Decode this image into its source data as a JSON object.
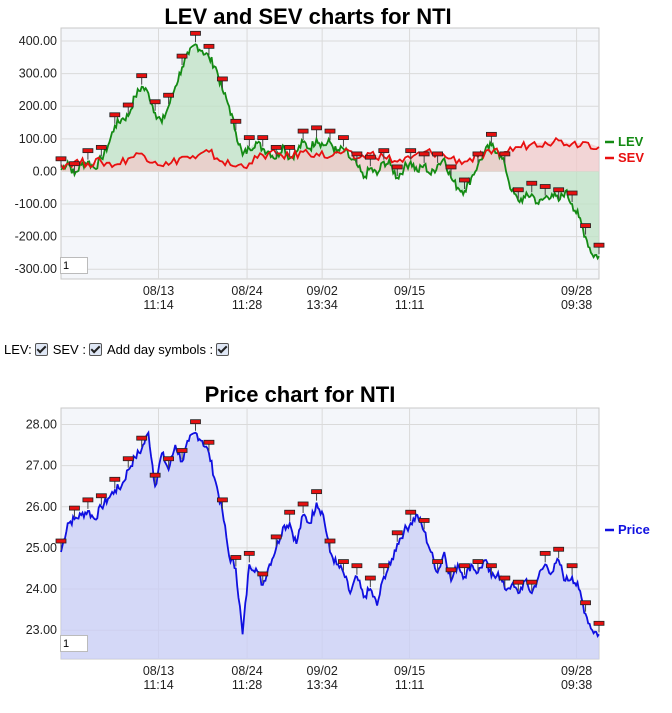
{
  "chart_data": [
    {
      "type": "line",
      "title": "LEV and SEV charts for NTI",
      "x_ticks": [
        {
          "date": "08/13",
          "time": "11:14"
        },
        {
          "date": "08/24",
          "time": "11:28"
        },
        {
          "date": "09/02",
          "time": "13:34"
        },
        {
          "date": "09/15",
          "time": "11:11"
        },
        {
          "date": "09/28",
          "time": "09:38"
        }
      ],
      "y_ticks": [
        "400.00",
        "300.00",
        "200.00",
        "100.00",
        "0.00",
        "-100.00",
        "-200.00",
        "-300.00"
      ],
      "ylim": [
        -330,
        440
      ],
      "grid": true,
      "legend_position": "right",
      "zoom_value": "1",
      "series": [
        {
          "name": "LEV",
          "color": "#138a13",
          "fill": "#bfe1c4",
          "points": [
            [
              0,
              5
            ],
            [
              0.03,
              30
            ],
            [
              0.06,
              -10
            ],
            [
              0.09,
              20
            ],
            [
              0.12,
              30
            ],
            [
              0.15,
              10
            ],
            [
              0.18,
              40
            ],
            [
              0.21,
              80
            ],
            [
              0.24,
              140
            ],
            [
              0.27,
              160
            ],
            [
              0.3,
              170
            ],
            [
              0.33,
              230
            ],
            [
              0.36,
              260
            ],
            [
              0.39,
              240
            ],
            [
              0.42,
              180
            ],
            [
              0.45,
              150
            ],
            [
              0.48,
              200
            ],
            [
              0.51,
              260
            ],
            [
              0.54,
              320
            ],
            [
              0.57,
              360
            ],
            [
              0.6,
              390
            ],
            [
              0.63,
              370
            ],
            [
              0.66,
              350
            ],
            [
              0.69,
              320
            ],
            [
              0.72,
              250
            ],
            [
              0.75,
              200
            ],
            [
              0.78,
              120
            ],
            [
              0.81,
              50
            ],
            [
              0.84,
              70
            ],
            [
              0.87,
              90
            ],
            [
              0.9,
              70
            ],
            [
              0.93,
              60
            ],
            [
              0.96,
              40
            ],
            [
              0.99,
              80
            ],
            [
              1.02,
              40
            ],
            [
              1.05,
              60
            ],
            [
              1.08,
              90
            ],
            [
              1.11,
              70
            ],
            [
              1.14,
              100
            ],
            [
              1.17,
              80
            ],
            [
              1.2,
              90
            ],
            [
              1.23,
              60
            ],
            [
              1.26,
              70
            ],
            [
              1.29,
              40
            ],
            [
              1.32,
              20
            ],
            [
              1.35,
              -20
            ],
            [
              1.38,
              10
            ],
            [
              1.41,
              -10
            ],
            [
              1.44,
              30
            ],
            [
              1.47,
              20
            ],
            [
              1.5,
              -20
            ],
            [
              1.53,
              10
            ],
            [
              1.56,
              30
            ],
            [
              1.59,
              0
            ],
            [
              1.62,
              20
            ],
            [
              1.65,
              -10
            ],
            [
              1.68,
              20
            ],
            [
              1.71,
              40
            ],
            [
              1.74,
              -20
            ],
            [
              1.77,
              -50
            ],
            [
              1.8,
              -60
            ],
            [
              1.83,
              -20
            ],
            [
              1.86,
              20
            ],
            [
              1.89,
              60
            ],
            [
              1.92,
              80
            ],
            [
              1.95,
              60
            ],
            [
              1.98,
              20
            ],
            [
              2.01,
              -60
            ],
            [
              2.04,
              -90
            ],
            [
              2.07,
              -80
            ],
            [
              2.1,
              -70
            ],
            [
              2.13,
              -100
            ],
            [
              2.16,
              -80
            ],
            [
              2.19,
              -70
            ],
            [
              2.22,
              -90
            ],
            [
              2.25,
              -60
            ],
            [
              2.28,
              -100
            ],
            [
              2.31,
              -140
            ],
            [
              2.34,
              -200
            ],
            [
              2.37,
              -255
            ],
            [
              2.4,
              -260
            ]
          ]
        },
        {
          "name": "SEV",
          "color": "#e81010",
          "fill": "#f2c9c9",
          "points": [
            [
              0,
              20
            ],
            [
              0.06,
              30
            ],
            [
              0.12,
              25
            ],
            [
              0.18,
              30
            ],
            [
              0.24,
              20
            ],
            [
              0.3,
              40
            ],
            [
              0.36,
              55
            ],
            [
              0.42,
              30
            ],
            [
              0.48,
              20
            ],
            [
              0.54,
              45
            ],
            [
              0.6,
              40
            ],
            [
              0.66,
              60
            ],
            [
              0.72,
              30
            ],
            [
              0.78,
              15
            ],
            [
              0.84,
              25
            ],
            [
              0.9,
              50
            ],
            [
              0.96,
              55
            ],
            [
              1.02,
              45
            ],
            [
              1.08,
              60
            ],
            [
              1.14,
              55
            ],
            [
              1.2,
              45
            ],
            [
              1.26,
              60
            ],
            [
              1.32,
              40
            ],
            [
              1.38,
              55
            ],
            [
              1.44,
              45
            ],
            [
              1.5,
              30
            ],
            [
              1.56,
              40
            ],
            [
              1.62,
              60
            ],
            [
              1.68,
              55
            ],
            [
              1.74,
              40
            ],
            [
              1.8,
              30
            ],
            [
              1.86,
              45
            ],
            [
              1.92,
              55
            ],
            [
              1.98,
              60
            ],
            [
              2.04,
              75
            ],
            [
              2.1,
              85
            ],
            [
              2.16,
              90
            ],
            [
              2.22,
              95
            ],
            [
              2.28,
              85
            ],
            [
              2.34,
              90
            ],
            [
              2.4,
              75
            ]
          ]
        }
      ]
    },
    {
      "type": "area",
      "title": "Price chart for NTI",
      "x_ticks": [
        {
          "date": "08/13",
          "time": "11:14"
        },
        {
          "date": "08/24",
          "time": "11:28"
        },
        {
          "date": "09/02",
          "time": "13:34"
        },
        {
          "date": "09/15",
          "time": "11:11"
        },
        {
          "date": "09/28",
          "time": "09:38"
        }
      ],
      "y_ticks": [
        "28.00",
        "27.00",
        "26.00",
        "25.00",
        "24.00",
        "23.00"
      ],
      "ylim": [
        22.3,
        28.4
      ],
      "grid": true,
      "legend_position": "right",
      "zoom_value": "1",
      "series": [
        {
          "name": "Price",
          "color": "#1010e0",
          "fill": "#c9cdf6",
          "points": [
            [
              0,
              24.9
            ],
            [
              0.03,
              25.6
            ],
            [
              0.06,
              25.7
            ],
            [
              0.09,
              25.8
            ],
            [
              0.12,
              25.9
            ],
            [
              0.15,
              25.7
            ],
            [
              0.18,
              26.0
            ],
            [
              0.21,
              26.2
            ],
            [
              0.24,
              26.4
            ],
            [
              0.27,
              26.5
            ],
            [
              0.3,
              26.9
            ],
            [
              0.33,
              27.2
            ],
            [
              0.36,
              27.4
            ],
            [
              0.39,
              27.8
            ],
            [
              0.42,
              26.5
            ],
            [
              0.45,
              27.3
            ],
            [
              0.48,
              26.9
            ],
            [
              0.51,
              27.5
            ],
            [
              0.54,
              27.1
            ],
            [
              0.57,
              27.6
            ],
            [
              0.6,
              27.8
            ],
            [
              0.63,
              27.6
            ],
            [
              0.66,
              27.3
            ],
            [
              0.69,
              26.6
            ],
            [
              0.72,
              25.9
            ],
            [
              0.75,
              24.8
            ],
            [
              0.78,
              24.5
            ],
            [
              0.81,
              22.9
            ],
            [
              0.84,
              24.6
            ],
            [
              0.87,
              24.5
            ],
            [
              0.9,
              24.1
            ],
            [
              0.93,
              24.6
            ],
            [
              0.96,
              25.0
            ],
            [
              0.99,
              25.5
            ],
            [
              1.02,
              25.6
            ],
            [
              1.05,
              25.1
            ],
            [
              1.08,
              25.8
            ],
            [
              1.11,
              25.6
            ],
            [
              1.14,
              26.1
            ],
            [
              1.17,
              25.8
            ],
            [
              1.2,
              24.9
            ],
            [
              1.23,
              24.6
            ],
            [
              1.26,
              24.4
            ],
            [
              1.29,
              23.9
            ],
            [
              1.32,
              24.3
            ],
            [
              1.35,
              23.8
            ],
            [
              1.38,
              24.0
            ],
            [
              1.41,
              23.6
            ],
            [
              1.44,
              24.3
            ],
            [
              1.47,
              24.6
            ],
            [
              1.5,
              25.1
            ],
            [
              1.53,
              25.4
            ],
            [
              1.56,
              25.6
            ],
            [
              1.59,
              25.8
            ],
            [
              1.62,
              25.4
            ],
            [
              1.65,
              24.9
            ],
            [
              1.68,
              24.4
            ],
            [
              1.71,
              24.9
            ],
            [
              1.74,
              24.2
            ],
            [
              1.77,
              24.6
            ],
            [
              1.8,
              24.3
            ],
            [
              1.83,
              24.6
            ],
            [
              1.86,
              24.4
            ],
            [
              1.89,
              24.7
            ],
            [
              1.92,
              24.3
            ],
            [
              1.95,
              24.4
            ],
            [
              1.98,
              24.0
            ],
            [
              2.01,
              24.1
            ],
            [
              2.04,
              23.9
            ],
            [
              2.07,
              24.2
            ],
            [
              2.1,
              23.9
            ],
            [
              2.13,
              24.3
            ],
            [
              2.16,
              24.6
            ],
            [
              2.19,
              24.4
            ],
            [
              2.22,
              24.7
            ],
            [
              2.25,
              24.2
            ],
            [
              2.28,
              24.3
            ],
            [
              2.31,
              24.0
            ],
            [
              2.34,
              23.4
            ],
            [
              2.37,
              23.0
            ],
            [
              2.4,
              22.9
            ]
          ]
        }
      ]
    }
  ],
  "controls": {
    "lev_label": "LEV:",
    "sev_label": "SEV :",
    "day_symbols_label": "Add day symbols :"
  }
}
